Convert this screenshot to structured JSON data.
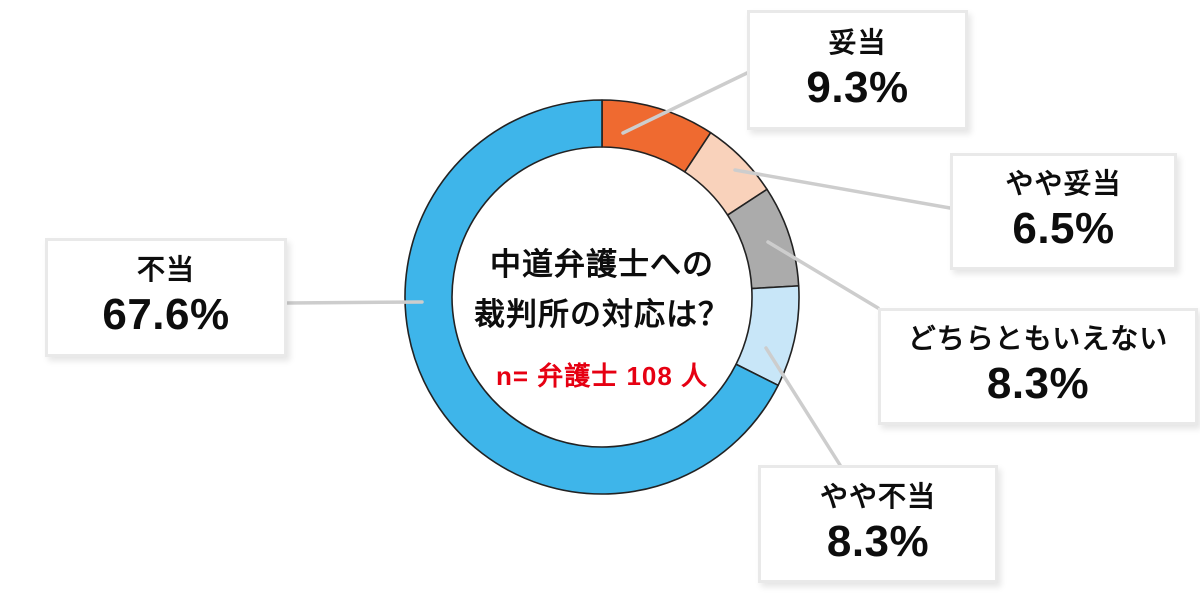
{
  "chart_data": {
    "type": "pie",
    "subtype": "donut",
    "direction": "clockwise",
    "start_angle_deg": 0,
    "center_title_line1": "中道弁護士への",
    "center_title_line2": "裁判所の対応は？",
    "sample_note": "n= 弁護士 108 人",
    "slices": [
      {
        "label": "妥当",
        "value": 9.3,
        "display": "9.3%",
        "color": "#ef6a30"
      },
      {
        "label": "やや妥当",
        "value": 6.5,
        "display": "6.5%",
        "color": "#f9d2bb"
      },
      {
        "label": "どちらともいえない",
        "value": 8.3,
        "display": "8.3%",
        "color": "#ababab"
      },
      {
        "label": "やや不当",
        "value": 8.3,
        "display": "8.3%",
        "color": "#c8e6f8"
      },
      {
        "label": "不当",
        "value": 67.6,
        "display": "67.6%",
        "color": "#3eb5ea"
      }
    ],
    "colors": {
      "segment_outline": "#222222",
      "leader_line": "#cdcdcd",
      "box_border": "#e9e9e9",
      "text": "#0d0d0d",
      "note_red": "#e60012",
      "background": "#ffffff"
    }
  }
}
